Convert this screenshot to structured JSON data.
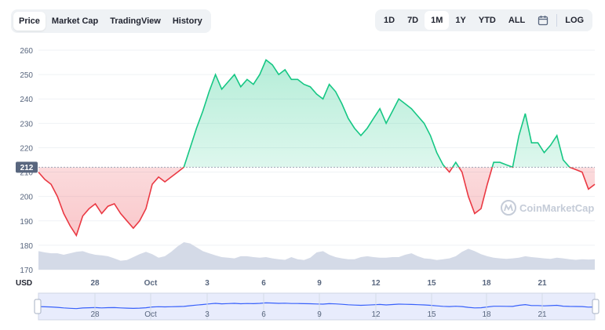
{
  "tabs": [
    {
      "label": "Price",
      "active": true
    },
    {
      "label": "Market Cap",
      "active": false
    },
    {
      "label": "TradingView",
      "active": false
    },
    {
      "label": "History",
      "active": false
    }
  ],
  "ranges": [
    {
      "label": "1D",
      "active": false
    },
    {
      "label": "7D",
      "active": false
    },
    {
      "label": "1M",
      "active": true
    },
    {
      "label": "1Y",
      "active": false
    },
    {
      "label": "YTD",
      "active": false
    },
    {
      "label": "ALL",
      "active": false
    }
  ],
  "log_label": "LOG",
  "calendar_icon": "calendar-icon",
  "watermark": "CoinMarketCap",
  "currency_label": "USD",
  "current_price_label": "212",
  "colors": {
    "up": "#16c784",
    "down": "#ea3943",
    "volume": "#cfd6e4",
    "navigator": "#3861fb"
  },
  "chart_data": {
    "type": "line",
    "ylim": [
      170,
      260
    ],
    "yticks": [
      "260",
      "250",
      "240",
      "230",
      "220",
      "210",
      "200",
      "190",
      "180",
      "170"
    ],
    "baseline": 212,
    "xticks": [
      "28",
      "Oct",
      "3",
      "6",
      "9",
      "12",
      "15",
      "18",
      "21"
    ],
    "xlabel": "",
    "ylabel": "",
    "series": [
      {
        "values": [
          210,
          207,
          205,
          200,
          193,
          188,
          184,
          192,
          195,
          197,
          193,
          196,
          197,
          193,
          190,
          187,
          190,
          195,
          205,
          208,
          206,
          208,
          210,
          212,
          220,
          228,
          235,
          243,
          250,
          244,
          247,
          250,
          245,
          248,
          246,
          250,
          256,
          254,
          250,
          252,
          248,
          248,
          246,
          245,
          242,
          240,
          246,
          243,
          238,
          232,
          228,
          225,
          228,
          232,
          236,
          230,
          235,
          240,
          238,
          236,
          233,
          230,
          225,
          218,
          213,
          210,
          214,
          210,
          200,
          193,
          195,
          205,
          214,
          214,
          213,
          212,
          225,
          234,
          222,
          222,
          218,
          221,
          225,
          215,
          212,
          211,
          210,
          203,
          205
        ]
      }
    ],
    "volume": [
      0.62,
      0.58,
      0.55,
      0.55,
      0.5,
      0.55,
      0.6,
      0.62,
      0.55,
      0.5,
      0.48,
      0.45,
      0.38,
      0.3,
      0.32,
      0.42,
      0.52,
      0.6,
      0.52,
      0.4,
      0.45,
      0.6,
      0.78,
      0.92,
      0.88,
      0.75,
      0.62,
      0.55,
      0.48,
      0.42,
      0.4,
      0.38,
      0.45,
      0.45,
      0.42,
      0.4,
      0.42,
      0.38,
      0.35,
      0.33,
      0.42,
      0.35,
      0.32,
      0.4,
      0.58,
      0.62,
      0.5,
      0.42,
      0.38,
      0.35,
      0.35,
      0.42,
      0.45,
      0.42,
      0.4,
      0.4,
      0.42,
      0.42,
      0.5,
      0.55,
      0.45,
      0.38,
      0.36,
      0.32,
      0.35,
      0.38,
      0.45,
      0.6,
      0.7,
      0.62,
      0.52,
      0.45,
      0.4,
      0.38,
      0.36,
      0.38,
      0.4,
      0.45,
      0.42,
      0.4,
      0.38,
      0.36,
      0.4,
      0.38,
      0.35,
      0.33,
      0.35,
      0.34,
      0.35
    ]
  }
}
